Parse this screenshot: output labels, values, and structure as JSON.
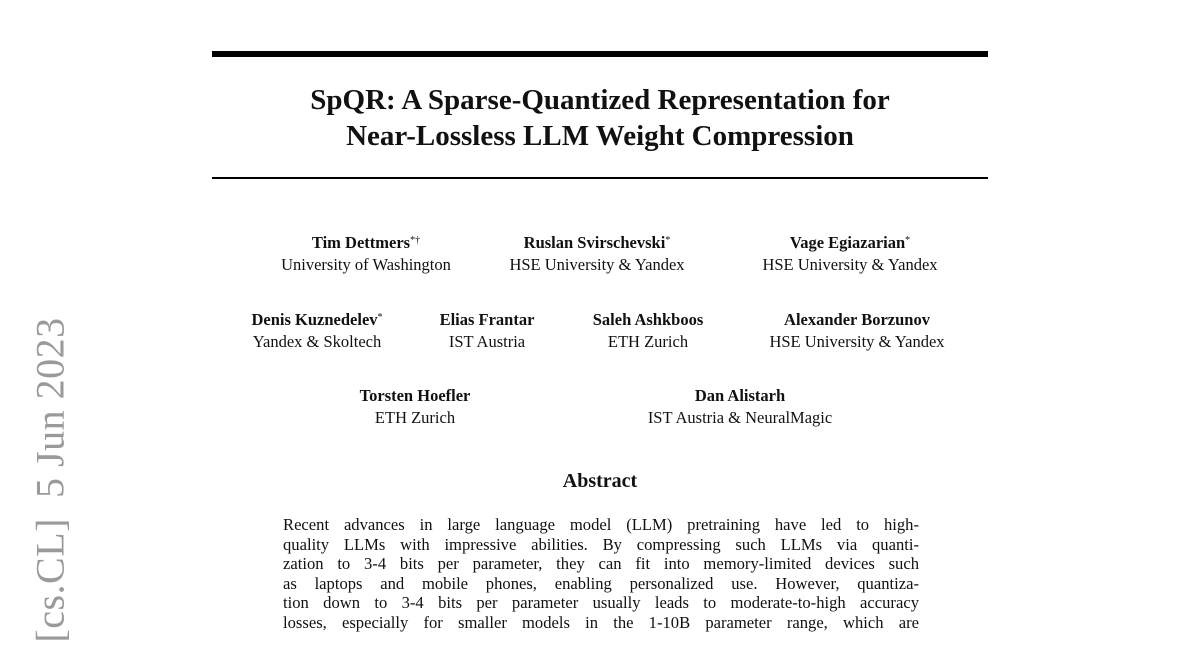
{
  "sidebar_stamp": {
    "category": "[cs.CL]",
    "date": "5 Jun 2023"
  },
  "title": {
    "line1": "SpQR: A Sparse-Quantized Representation for",
    "line2": "Near-Lossless LLM Weight Compression"
  },
  "authors": [
    {
      "name": "Tim Dettmers",
      "mark": "*†",
      "affiliation": "University of Washington"
    },
    {
      "name": "Ruslan Svirschevski",
      "mark": "*",
      "affiliation": "HSE University & Yandex"
    },
    {
      "name": "Vage Egiazarian",
      "mark": "*",
      "affiliation": "HSE University & Yandex"
    },
    {
      "name": "Denis Kuznedelev",
      "mark": "*",
      "affiliation": "Yandex & Skoltech"
    },
    {
      "name": "Elias Frantar",
      "mark": "",
      "affiliation": "IST Austria"
    },
    {
      "name": "Saleh Ashkboos",
      "mark": "",
      "affiliation": "ETH Zurich"
    },
    {
      "name": "Alexander Borzunov",
      "mark": "",
      "affiliation": "HSE University & Yandex"
    },
    {
      "name": "Torsten Hoefler",
      "mark": "",
      "affiliation": "ETH Zurich"
    },
    {
      "name": "Dan Alistarh",
      "mark": "",
      "affiliation": "IST Austria & NeuralMagic"
    }
  ],
  "abstract": {
    "heading": "Abstract",
    "lines": [
      "Recent advances in large language model (LLM) pretraining have led to high-",
      "quality LLMs with impressive abilities. By compressing such LLMs via quanti-",
      "zation to 3-4 bits per parameter, they can fit into memory-limited devices such",
      "as laptops and mobile phones, enabling personalized use.  However, quantiza-",
      "tion down to 3-4 bits per parameter usually leads to moderate-to-high accuracy",
      "losses, especially for smaller models in the 1-10B parameter range, which are"
    ]
  }
}
